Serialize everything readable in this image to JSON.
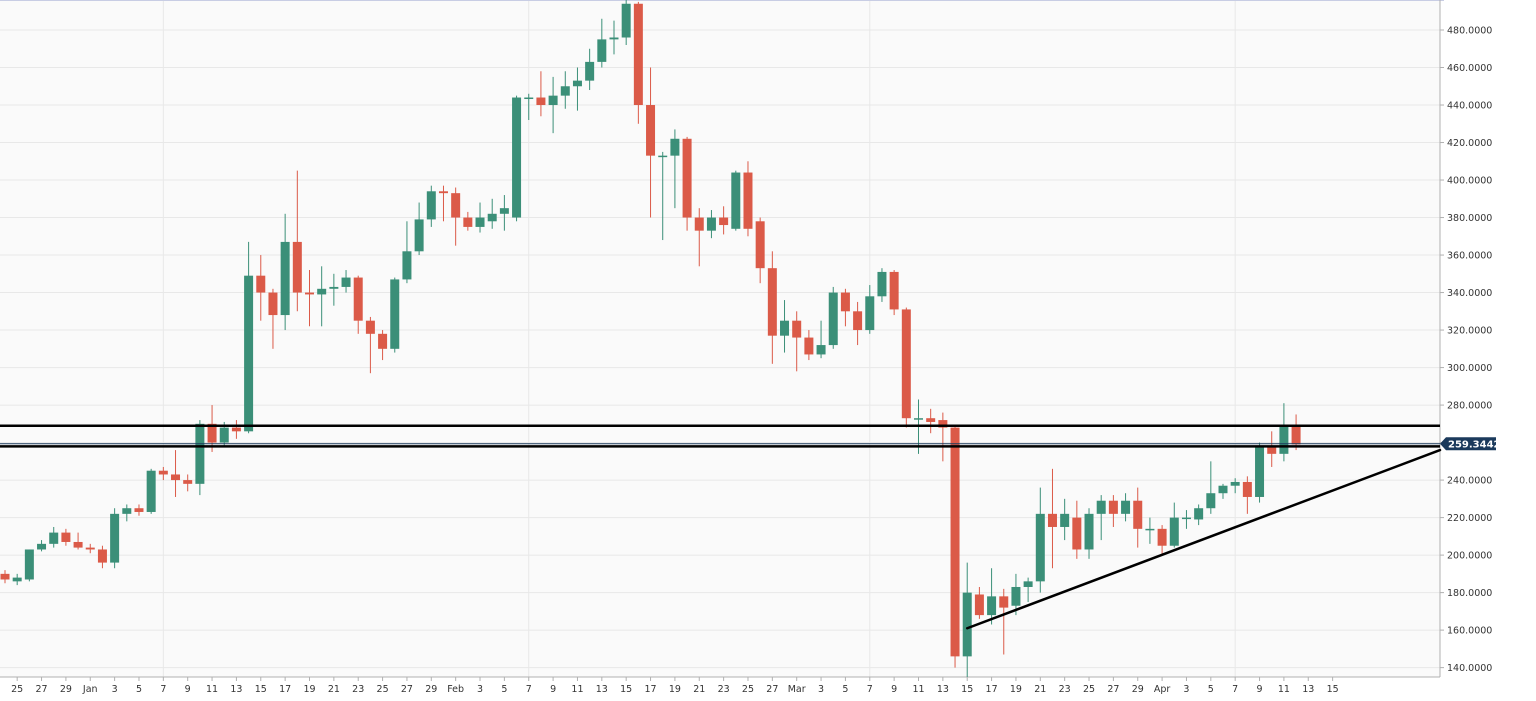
{
  "chart_data": {
    "type": "candlestick",
    "y_axis": {
      "min": 135,
      "max": 496,
      "tick_values": [
        140,
        160,
        180,
        200,
        220,
        240,
        260,
        280,
        300,
        320,
        340,
        360,
        380,
        400,
        420,
        440,
        460,
        480
      ],
      "tick_labels": [
        "140.0000",
        "160.0000",
        "180.0000",
        "200.0000",
        "220.0000",
        "240.0000",
        "260.0000",
        "280.0000",
        "300.0000",
        "320.0000",
        "340.0000",
        "360.0000",
        "380.0000",
        "400.0000",
        "420.0000",
        "440.0000",
        "460.0000",
        "480.0000"
      ],
      "position": "right"
    },
    "x_axis": {
      "labels": [
        "25",
        "27",
        "29",
        "Jan",
        "3",
        "5",
        "7",
        "9",
        "11",
        "13",
        "15",
        "17",
        "19",
        "21",
        "23",
        "25",
        "27",
        "29",
        "Feb",
        "3",
        "5",
        "7",
        "9",
        "11",
        "13",
        "15",
        "17",
        "19",
        "21",
        "23",
        "25",
        "27",
        "Mar",
        "3",
        "5",
        "7",
        "9",
        "11",
        "13",
        "15",
        "17",
        "19",
        "21",
        "23",
        "25",
        "27",
        "29",
        "Apr",
        "3",
        "5",
        "7",
        "9",
        "11",
        "13",
        "15"
      ]
    },
    "grid": true,
    "current_price": "259.34421",
    "current_price_value": 259.34421,
    "colors": {
      "up": "#3b8f78",
      "down": "#db5a48",
      "grid": "#e8e8e8",
      "background": "#fafafa",
      "price_tag": "#1b3a5c",
      "lines": "#000000"
    },
    "candles": [
      {
        "o": 190,
        "h": 192,
        "l": 185,
        "c": 187
      },
      {
        "o": 186,
        "h": 190,
        "l": 184,
        "c": 188
      },
      {
        "o": 187,
        "h": 203,
        "l": 186,
        "c": 203
      },
      {
        "o": 203,
        "h": 208,
        "l": 202,
        "c": 206
      },
      {
        "o": 206,
        "h": 215,
        "l": 204,
        "c": 212
      },
      {
        "o": 212,
        "h": 214,
        "l": 205,
        "c": 207
      },
      {
        "o": 207,
        "h": 212,
        "l": 203,
        "c": 204
      },
      {
        "o": 204,
        "h": 206,
        "l": 201,
        "c": 203
      },
      {
        "o": 203,
        "h": 205,
        "l": 193,
        "c": 196
      },
      {
        "o": 196,
        "h": 225,
        "l": 193,
        "c": 222
      },
      {
        "o": 222,
        "h": 227,
        "l": 218,
        "c": 225
      },
      {
        "o": 225,
        "h": 227,
        "l": 221,
        "c": 223
      },
      {
        "o": 223,
        "h": 246,
        "l": 222,
        "c": 245
      },
      {
        "o": 245,
        "h": 247,
        "l": 240,
        "c": 243
      },
      {
        "o": 243,
        "h": 256,
        "l": 231,
        "c": 240
      },
      {
        "o": 240,
        "h": 243,
        "l": 234,
        "c": 238
      },
      {
        "o": 238,
        "h": 272,
        "l": 232,
        "c": 270
      },
      {
        "o": 270,
        "h": 280,
        "l": 255,
        "c": 260
      },
      {
        "o": 260,
        "h": 271,
        "l": 258,
        "c": 268
      },
      {
        "o": 268,
        "h": 272,
        "l": 262,
        "c": 266
      },
      {
        "o": 266,
        "h": 367,
        "l": 265,
        "c": 349
      },
      {
        "o": 349,
        "h": 360,
        "l": 325,
        "c": 340
      },
      {
        "o": 340,
        "h": 342,
        "l": 310,
        "c": 328
      },
      {
        "o": 328,
        "h": 382,
        "l": 320,
        "c": 367
      },
      {
        "o": 367,
        "h": 405,
        "l": 330,
        "c": 340
      },
      {
        "o": 340,
        "h": 352,
        "l": 322,
        "c": 339
      },
      {
        "o": 339,
        "h": 354,
        "l": 322,
        "c": 342
      },
      {
        "o": 342,
        "h": 350,
        "l": 333,
        "c": 343
      },
      {
        "o": 343,
        "h": 352,
        "l": 340,
        "c": 348
      },
      {
        "o": 348,
        "h": 349,
        "l": 318,
        "c": 325
      },
      {
        "o": 325,
        "h": 327,
        "l": 297,
        "c": 318
      },
      {
        "o": 318,
        "h": 320,
        "l": 304,
        "c": 310
      },
      {
        "o": 310,
        "h": 348,
        "l": 308,
        "c": 347
      },
      {
        "o": 347,
        "h": 378,
        "l": 345,
        "c": 362
      },
      {
        "o": 362,
        "h": 388,
        "l": 360,
        "c": 379
      },
      {
        "o": 379,
        "h": 397,
        "l": 375,
        "c": 394
      },
      {
        "o": 394,
        "h": 397,
        "l": 378,
        "c": 393
      },
      {
        "o": 393,
        "h": 396,
        "l": 365,
        "c": 380
      },
      {
        "o": 380,
        "h": 383,
        "l": 373,
        "c": 375
      },
      {
        "o": 375,
        "h": 388,
        "l": 372,
        "c": 380
      },
      {
        "o": 378,
        "h": 390,
        "l": 374,
        "c": 382
      },
      {
        "o": 382,
        "h": 392,
        "l": 373,
        "c": 385
      },
      {
        "o": 380,
        "h": 445,
        "l": 378,
        "c": 444
      },
      {
        "o": 444,
        "h": 446,
        "l": 432,
        "c": 444
      },
      {
        "o": 444,
        "h": 458,
        "l": 434,
        "c": 440
      },
      {
        "o": 440,
        "h": 455,
        "l": 425,
        "c": 445
      },
      {
        "o": 445,
        "h": 458,
        "l": 438,
        "c": 450
      },
      {
        "o": 450,
        "h": 460,
        "l": 437,
        "c": 453
      },
      {
        "o": 453,
        "h": 470,
        "l": 448,
        "c": 463
      },
      {
        "o": 463,
        "h": 486,
        "l": 460,
        "c": 475
      },
      {
        "o": 475,
        "h": 485,
        "l": 467,
        "c": 476
      },
      {
        "o": 476,
        "h": 496,
        "l": 472,
        "c": 494
      },
      {
        "o": 494,
        "h": 495,
        "l": 430,
        "c": 440
      },
      {
        "o": 440,
        "h": 460,
        "l": 380,
        "c": 413
      },
      {
        "o": 413,
        "h": 415,
        "l": 368,
        "c": 413
      },
      {
        "o": 413,
        "h": 427,
        "l": 385,
        "c": 422
      },
      {
        "o": 422,
        "h": 423,
        "l": 373,
        "c": 380
      },
      {
        "o": 380,
        "h": 385,
        "l": 354,
        "c": 373
      },
      {
        "o": 373,
        "h": 384,
        "l": 369,
        "c": 380
      },
      {
        "o": 380,
        "h": 386,
        "l": 371,
        "c": 376
      },
      {
        "o": 374,
        "h": 405,
        "l": 373,
        "c": 404
      },
      {
        "o": 404,
        "h": 410,
        "l": 370,
        "c": 374
      },
      {
        "o": 378,
        "h": 380,
        "l": 345,
        "c": 353
      },
      {
        "o": 353,
        "h": 362,
        "l": 302,
        "c": 317
      },
      {
        "o": 317,
        "h": 336,
        "l": 308,
        "c": 325
      },
      {
        "o": 325,
        "h": 330,
        "l": 298,
        "c": 316
      },
      {
        "o": 316,
        "h": 320,
        "l": 304,
        "c": 307
      },
      {
        "o": 307,
        "h": 325,
        "l": 305,
        "c": 312
      },
      {
        "o": 312,
        "h": 343,
        "l": 310,
        "c": 340
      },
      {
        "o": 340,
        "h": 342,
        "l": 322,
        "c": 330
      },
      {
        "o": 330,
        "h": 335,
        "l": 312,
        "c": 320
      },
      {
        "o": 320,
        "h": 344,
        "l": 318,
        "c": 338
      },
      {
        "o": 338,
        "h": 353,
        "l": 335,
        "c": 351
      },
      {
        "o": 351,
        "h": 352,
        "l": 328,
        "c": 331
      },
      {
        "o": 331,
        "h": 332,
        "l": 268,
        "c": 273
      },
      {
        "o": 273,
        "h": 283,
        "l": 254,
        "c": 273
      },
      {
        "o": 273,
        "h": 278,
        "l": 265,
        "c": 271
      },
      {
        "o": 272,
        "h": 276,
        "l": 250,
        "c": 268
      },
      {
        "o": 268,
        "h": 269,
        "l": 140,
        "c": 146
      },
      {
        "o": 146,
        "h": 196,
        "l": 135,
        "c": 180
      },
      {
        "o": 179,
        "h": 183,
        "l": 166,
        "c": 168
      },
      {
        "o": 168,
        "h": 193,
        "l": 163,
        "c": 178
      },
      {
        "o": 178,
        "h": 182,
        "l": 147,
        "c": 172
      },
      {
        "o": 173,
        "h": 190,
        "l": 168,
        "c": 183
      },
      {
        "o": 183,
        "h": 188,
        "l": 175,
        "c": 186
      },
      {
        "o": 186,
        "h": 236,
        "l": 180,
        "c": 222
      },
      {
        "o": 222,
        "h": 246,
        "l": 193,
        "c": 215
      },
      {
        "o": 215,
        "h": 230,
        "l": 208,
        "c": 222
      },
      {
        "o": 220,
        "h": 229,
        "l": 198,
        "c": 203
      },
      {
        "o": 203,
        "h": 225,
        "l": 198,
        "c": 222
      },
      {
        "o": 222,
        "h": 232,
        "l": 208,
        "c": 229
      },
      {
        "o": 229,
        "h": 232,
        "l": 215,
        "c": 222
      },
      {
        "o": 222,
        "h": 233,
        "l": 218,
        "c": 229
      },
      {
        "o": 229,
        "h": 236,
        "l": 204,
        "c": 214
      },
      {
        "o": 214,
        "h": 220,
        "l": 206,
        "c": 214
      },
      {
        "o": 214,
        "h": 216,
        "l": 200,
        "c": 205
      },
      {
        "o": 205,
        "h": 228,
        "l": 204,
        "c": 220
      },
      {
        "o": 220,
        "h": 224,
        "l": 214,
        "c": 220
      },
      {
        "o": 219,
        "h": 227,
        "l": 216,
        "c": 225
      },
      {
        "o": 225,
        "h": 250,
        "l": 222,
        "c": 233
      },
      {
        "o": 233,
        "h": 238,
        "l": 230,
        "c": 237
      },
      {
        "o": 237,
        "h": 241,
        "l": 233,
        "c": 239
      },
      {
        "o": 239,
        "h": 242,
        "l": 222,
        "c": 231
      },
      {
        "o": 231,
        "h": 260,
        "l": 228,
        "c": 258
      },
      {
        "o": 258,
        "h": 266,
        "l": 247,
        "c": 254
      },
      {
        "o": 254,
        "h": 281,
        "l": 250,
        "c": 269
      },
      {
        "o": 269,
        "h": 275,
        "l": 256,
        "c": 259
      }
    ],
    "horizontal_lines": [
      269,
      258
    ],
    "trendline": {
      "x0_index": 79,
      "y0": 161,
      "x1_index": 113,
      "y1": 256
    }
  }
}
